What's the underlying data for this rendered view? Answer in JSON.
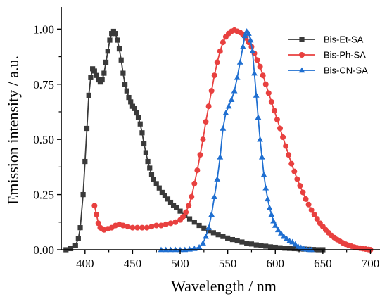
{
  "chart_data": {
    "type": "line",
    "title": "",
    "xlabel": "Wavelength / nm",
    "ylabel": "Emission intensity / a.u.",
    "xlim": [
      375,
      710
    ],
    "ylim": [
      0,
      1.1
    ],
    "x_ticks": [
      400,
      450,
      500,
      550,
      600,
      650,
      700
    ],
    "y_ticks": [
      0.0,
      0.25,
      0.5,
      0.75,
      1.0
    ],
    "x_tick_labels": [
      "400",
      "450",
      "500",
      "550",
      "600",
      "650",
      "700"
    ],
    "y_tick_labels": [
      "0.00",
      "0.25",
      "0.50",
      "0.75",
      "1.00"
    ],
    "grid": false,
    "legend_position": "top-right",
    "series": [
      {
        "name": "Bis-Et-SA",
        "color": "#3a3a3a",
        "marker": "square",
        "points": [
          [
            380,
            0.0
          ],
          [
            385,
            0.005
          ],
          [
            390,
            0.02
          ],
          [
            393,
            0.05
          ],
          [
            395,
            0.1
          ],
          [
            398,
            0.25
          ],
          [
            400,
            0.4
          ],
          [
            402,
            0.55
          ],
          [
            404,
            0.7
          ],
          [
            406,
            0.78
          ],
          [
            408,
            0.82
          ],
          [
            410,
            0.81
          ],
          [
            412,
            0.79
          ],
          [
            414,
            0.77
          ],
          [
            416,
            0.76
          ],
          [
            418,
            0.77
          ],
          [
            420,
            0.8
          ],
          [
            422,
            0.85
          ],
          [
            424,
            0.9
          ],
          [
            426,
            0.95
          ],
          [
            428,
            0.98
          ],
          [
            430,
            0.99
          ],
          [
            432,
            0.98
          ],
          [
            434,
            0.95
          ],
          [
            436,
            0.91
          ],
          [
            438,
            0.86
          ],
          [
            440,
            0.8
          ],
          [
            442,
            0.75
          ],
          [
            444,
            0.72
          ],
          [
            446,
            0.69
          ],
          [
            448,
            0.67
          ],
          [
            450,
            0.65
          ],
          [
            452,
            0.64
          ],
          [
            454,
            0.62
          ],
          [
            456,
            0.6
          ],
          [
            458,
            0.57
          ],
          [
            460,
            0.53
          ],
          [
            462,
            0.48
          ],
          [
            464,
            0.44
          ],
          [
            466,
            0.4
          ],
          [
            468,
            0.37
          ],
          [
            470,
            0.34
          ],
          [
            472,
            0.32
          ],
          [
            475,
            0.3
          ],
          [
            478,
            0.28
          ],
          [
            481,
            0.26
          ],
          [
            484,
            0.245
          ],
          [
            487,
            0.23
          ],
          [
            490,
            0.215
          ],
          [
            493,
            0.2
          ],
          [
            496,
            0.19
          ],
          [
            500,
            0.175
          ],
          [
            505,
            0.155
          ],
          [
            510,
            0.14
          ],
          [
            515,
            0.125
          ],
          [
            520,
            0.11
          ],
          [
            525,
            0.098
          ],
          [
            530,
            0.087
          ],
          [
            535,
            0.077
          ],
          [
            540,
            0.068
          ],
          [
            545,
            0.06
          ],
          [
            550,
            0.053
          ],
          [
            555,
            0.046
          ],
          [
            560,
            0.04
          ],
          [
            565,
            0.035
          ],
          [
            570,
            0.03
          ],
          [
            575,
            0.026
          ],
          [
            580,
            0.022
          ],
          [
            585,
            0.019
          ],
          [
            590,
            0.016
          ],
          [
            595,
            0.013
          ],
          [
            600,
            0.011
          ],
          [
            605,
            0.009
          ],
          [
            610,
            0.007
          ],
          [
            615,
            0.006
          ],
          [
            620,
            0.005
          ],
          [
            625,
            0.004
          ],
          [
            630,
            0.003
          ],
          [
            635,
            0.002
          ],
          [
            640,
            0.001
          ],
          [
            645,
            0.0
          ],
          [
            650,
            0.0
          ]
        ]
      },
      {
        "name": "Bis-Ph-SA",
        "color": "#e8403f",
        "marker": "circle",
        "points": [
          [
            410,
            0.2
          ],
          [
            412,
            0.16
          ],
          [
            414,
            0.12
          ],
          [
            416,
            0.1
          ],
          [
            418,
            0.095
          ],
          [
            420,
            0.09
          ],
          [
            424,
            0.095
          ],
          [
            428,
            0.1
          ],
          [
            432,
            0.11
          ],
          [
            436,
            0.115
          ],
          [
            440,
            0.11
          ],
          [
            445,
            0.105
          ],
          [
            450,
            0.1
          ],
          [
            455,
            0.1
          ],
          [
            460,
            0.1
          ],
          [
            465,
            0.1
          ],
          [
            470,
            0.105
          ],
          [
            475,
            0.11
          ],
          [
            480,
            0.11
          ],
          [
            485,
            0.115
          ],
          [
            490,
            0.12
          ],
          [
            495,
            0.125
          ],
          [
            500,
            0.135
          ],
          [
            503,
            0.15
          ],
          [
            506,
            0.17
          ],
          [
            509,
            0.2
          ],
          [
            512,
            0.24
          ],
          [
            515,
            0.3
          ],
          [
            518,
            0.36
          ],
          [
            521,
            0.43
          ],
          [
            524,
            0.5
          ],
          [
            527,
            0.58
          ],
          [
            530,
            0.65
          ],
          [
            533,
            0.72
          ],
          [
            536,
            0.79
          ],
          [
            539,
            0.85
          ],
          [
            542,
            0.9
          ],
          [
            545,
            0.94
          ],
          [
            548,
            0.965
          ],
          [
            551,
            0.98
          ],
          [
            554,
            0.99
          ],
          [
            557,
            0.995
          ],
          [
            560,
            0.99
          ],
          [
            563,
            0.985
          ],
          [
            566,
            0.975
          ],
          [
            569,
            0.96
          ],
          [
            572,
            0.94
          ],
          [
            575,
            0.92
          ],
          [
            578,
            0.89
          ],
          [
            581,
            0.86
          ],
          [
            584,
            0.83
          ],
          [
            587,
            0.79
          ],
          [
            590,
            0.75
          ],
          [
            593,
            0.71
          ],
          [
            596,
            0.67
          ],
          [
            599,
            0.63
          ],
          [
            602,
            0.59
          ],
          [
            605,
            0.55
          ],
          [
            608,
            0.51
          ],
          [
            611,
            0.47
          ],
          [
            614,
            0.43
          ],
          [
            617,
            0.39
          ],
          [
            620,
            0.355
          ],
          [
            623,
            0.32
          ],
          [
            626,
            0.29
          ],
          [
            629,
            0.26
          ],
          [
            632,
            0.23
          ],
          [
            635,
            0.205
          ],
          [
            638,
            0.18
          ],
          [
            641,
            0.16
          ],
          [
            644,
            0.14
          ],
          [
            647,
            0.12
          ],
          [
            650,
            0.105
          ],
          [
            653,
            0.09
          ],
          [
            656,
            0.077
          ],
          [
            659,
            0.065
          ],
          [
            662,
            0.055
          ],
          [
            665,
            0.046
          ],
          [
            668,
            0.038
          ],
          [
            671,
            0.031
          ],
          [
            674,
            0.025
          ],
          [
            677,
            0.02
          ],
          [
            680,
            0.016
          ],
          [
            683,
            0.012
          ],
          [
            686,
            0.009
          ],
          [
            689,
            0.007
          ],
          [
            692,
            0.005
          ],
          [
            695,
            0.003
          ],
          [
            698,
            0.001
          ],
          [
            700,
            0.0
          ]
        ]
      },
      {
        "name": "Bis-CN-SA",
        "color": "#1f6fd1",
        "marker": "triangle",
        "points": [
          [
            480,
            0.0
          ],
          [
            485,
            0.0
          ],
          [
            490,
            0.0
          ],
          [
            495,
            0.0
          ],
          [
            500,
            0.0
          ],
          [
            505,
            0.0
          ],
          [
            510,
            0.002
          ],
          [
            515,
            0.005
          ],
          [
            520,
            0.012
          ],
          [
            524,
            0.03
          ],
          [
            527,
            0.06
          ],
          [
            530,
            0.1
          ],
          [
            533,
            0.16
          ],
          [
            536,
            0.24
          ],
          [
            539,
            0.32
          ],
          [
            542,
            0.42
          ],
          [
            545,
            0.55
          ],
          [
            548,
            0.62
          ],
          [
            551,
            0.65
          ],
          [
            554,
            0.68
          ],
          [
            557,
            0.72
          ],
          [
            560,
            0.78
          ],
          [
            563,
            0.85
          ],
          [
            566,
            0.92
          ],
          [
            568,
            0.97
          ],
          [
            570,
            0.99
          ],
          [
            572,
            0.98
          ],
          [
            574,
            0.95
          ],
          [
            576,
            0.9
          ],
          [
            578,
            0.8
          ],
          [
            580,
            0.7
          ],
          [
            582,
            0.6
          ],
          [
            584,
            0.5
          ],
          [
            586,
            0.42
          ],
          [
            588,
            0.34
          ],
          [
            590,
            0.28
          ],
          [
            592,
            0.23
          ],
          [
            594,
            0.19
          ],
          [
            596,
            0.16
          ],
          [
            598,
            0.13
          ],
          [
            600,
            0.11
          ],
          [
            603,
            0.09
          ],
          [
            606,
            0.075
          ],
          [
            609,
            0.06
          ],
          [
            612,
            0.05
          ],
          [
            615,
            0.04
          ],
          [
            618,
            0.035
          ],
          [
            621,
            0.025
          ],
          [
            624,
            0.015
          ],
          [
            627,
            0.01
          ],
          [
            630,
            0.005
          ],
          [
            633,
            0.002
          ],
          [
            636,
            0.0
          ],
          [
            638,
            0.0
          ]
        ]
      }
    ]
  }
}
